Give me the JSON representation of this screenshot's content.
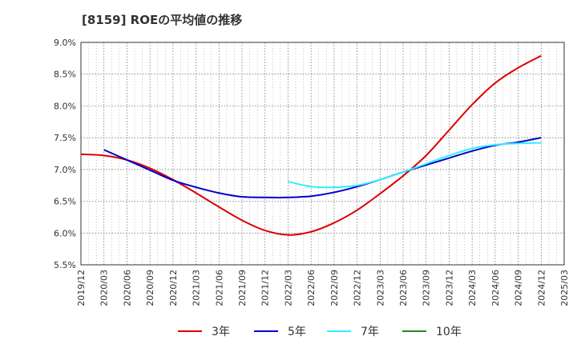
{
  "chart_data": {
    "type": "line",
    "title": "[8159]  ROEの平均値の推移",
    "xlabel": "",
    "ylabel": "",
    "ylim": [
      5.5,
      9.0
    ],
    "yticks": [
      "5.5%",
      "6.0%",
      "6.5%",
      "7.0%",
      "7.5%",
      "8.0%",
      "8.5%",
      "9.0%"
    ],
    "xticks": [
      "2019/12",
      "2020/03",
      "2020/06",
      "2020/09",
      "2020/12",
      "2021/03",
      "2021/06",
      "2021/09",
      "2021/12",
      "2022/03",
      "2022/06",
      "2022/09",
      "2022/12",
      "2023/03",
      "2023/06",
      "2023/09",
      "2023/12",
      "2024/03",
      "2024/06",
      "2024/09",
      "2024/12",
      "2025/03"
    ],
    "grid": true,
    "legend_position": "bottom",
    "series": [
      {
        "name": "3年",
        "color": "#dd0000",
        "x": [
          "2019/12",
          "2020/03",
          "2020/06",
          "2020/09",
          "2020/12",
          "2021/03",
          "2021/06",
          "2021/09",
          "2021/12",
          "2022/03",
          "2022/06",
          "2022/09",
          "2022/12",
          "2023/03",
          "2023/06",
          "2023/09",
          "2023/12",
          "2024/03",
          "2024/06",
          "2024/09",
          "2024/12"
        ],
        "values": [
          7.24,
          7.22,
          7.15,
          7.02,
          6.84,
          6.63,
          6.41,
          6.2,
          6.04,
          5.97,
          6.02,
          6.16,
          6.36,
          6.62,
          6.9,
          7.22,
          7.62,
          8.02,
          8.36,
          8.6,
          8.79
        ]
      },
      {
        "name": "5年",
        "color": "#0000cc",
        "x": [
          "2020/03",
          "2020/06",
          "2020/09",
          "2020/12",
          "2021/03",
          "2021/06",
          "2021/09",
          "2021/12",
          "2022/03",
          "2022/06",
          "2022/09",
          "2022/12",
          "2023/03",
          "2023/06",
          "2023/09",
          "2023/12",
          "2024/03",
          "2024/06",
          "2024/09",
          "2024/12"
        ],
        "values": [
          7.31,
          7.15,
          6.99,
          6.83,
          6.72,
          6.63,
          6.57,
          6.56,
          6.56,
          6.58,
          6.64,
          6.73,
          6.84,
          6.96,
          7.07,
          7.18,
          7.29,
          7.38,
          7.43,
          7.5
        ]
      },
      {
        "name": "7年",
        "color": "#33eeff",
        "x": [
          "2022/03",
          "2022/06",
          "2022/09",
          "2022/12",
          "2023/03",
          "2023/06",
          "2023/09",
          "2023/12",
          "2024/03",
          "2024/06",
          "2024/09",
          "2024/12"
        ],
        "values": [
          6.81,
          6.73,
          6.72,
          6.75,
          6.84,
          6.96,
          7.09,
          7.22,
          7.33,
          7.39,
          7.41,
          7.42
        ]
      },
      {
        "name": "10年",
        "color": "#228822",
        "x": [],
        "values": []
      }
    ]
  }
}
